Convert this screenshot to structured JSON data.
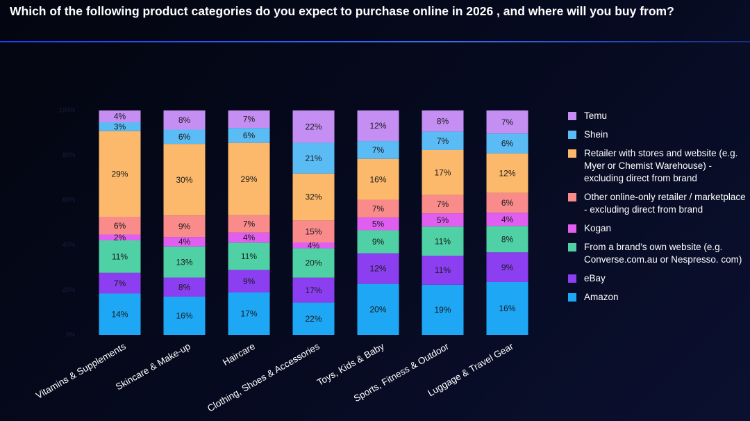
{
  "chart_data": {
    "type": "bar",
    "stacking": "percent",
    "title": "Which of the following product categories do you expect to purchase online in 2026 , and where will you buy from?",
    "categories": [
      "Vitamins & Supplements",
      "Skincare & Make-up",
      "Haircare",
      "Clothing, Shoes & Accessories",
      "Toys, Kids & Baby",
      "Sports, Fitness & Outdoor",
      "Luggage & Travel Gear"
    ],
    "ylim": [
      0,
      100
    ],
    "yticks": [
      {
        "value": 0,
        "label": "0%"
      },
      {
        "value": 20,
        "label": "20%"
      },
      {
        "value": 40,
        "label": "40%"
      },
      {
        "value": 60,
        "label": "60%"
      },
      {
        "value": 80,
        "label": "80%"
      },
      {
        "value": 100,
        "label": "100%"
      }
    ],
    "series": [
      {
        "name": "Amazon",
        "color": "#1ea7f5",
        "values": [
          14,
          16,
          17,
          22,
          20,
          19,
          16
        ],
        "value_labels": [
          "14%",
          "16%",
          "17%",
          "22%",
          "20%",
          "19%",
          "16%"
        ]
      },
      {
        "name": "eBay",
        "color": "#8b3ff0",
        "values": [
          7,
          8,
          9,
          17,
          12,
          11,
          9
        ],
        "value_labels": [
          "7%",
          "8%",
          "9%",
          "17%",
          "12%",
          "11%",
          "9%"
        ]
      },
      {
        "name": "From a brand’s own website (e.g. Converse.com.au or Nespresso. com)",
        "color": "#4fd1a5",
        "values": [
          11,
          13,
          11,
          20,
          9,
          11,
          8
        ],
        "value_labels": [
          "11%",
          "13%",
          "11%",
          "20%",
          "9%",
          "11%",
          "8%"
        ]
      },
      {
        "name": "Kogan",
        "color": "#e05ff0",
        "values": [
          2,
          4,
          4,
          4,
          5,
          5,
          4
        ],
        "value_labels": [
          "2%",
          "4%",
          "4%",
          "4%",
          "5%",
          "5%",
          "4%"
        ]
      },
      {
        "name": "Other online-only retailer / marketplace - excluding direct from brand",
        "color": "#f98b8b",
        "values": [
          6,
          9,
          7,
          15,
          7,
          7,
          6
        ],
        "value_labels": [
          "6%",
          "9%",
          "7%",
          "15%",
          "7%",
          "7%",
          "6%"
        ]
      },
      {
        "name": "Retailer with stores and website (e.g. Myer or Chemist Warehouse) - excluding direct from brand",
        "color": "#fcb96b",
        "values": [
          29,
          30,
          29,
          32,
          16,
          17,
          12
        ],
        "value_labels": [
          "29%",
          "30%",
          "29%",
          "32%",
          "16%",
          "17%",
          "12%"
        ]
      },
      {
        "name": "Shein",
        "color": "#5bbcf5",
        "values": [
          3,
          6,
          6,
          21,
          7,
          7,
          6
        ],
        "value_labels": [
          "3%",
          "6%",
          "6%",
          "21%",
          "7%",
          "7%",
          "6%"
        ]
      },
      {
        "name": "Temu",
        "color": "#c48ef2",
        "values": [
          4,
          8,
          7,
          22,
          12,
          8,
          7
        ],
        "value_labels": [
          "4%",
          "8%",
          "7%",
          "22%",
          "12%",
          "8%",
          "7%"
        ]
      }
    ]
  }
}
